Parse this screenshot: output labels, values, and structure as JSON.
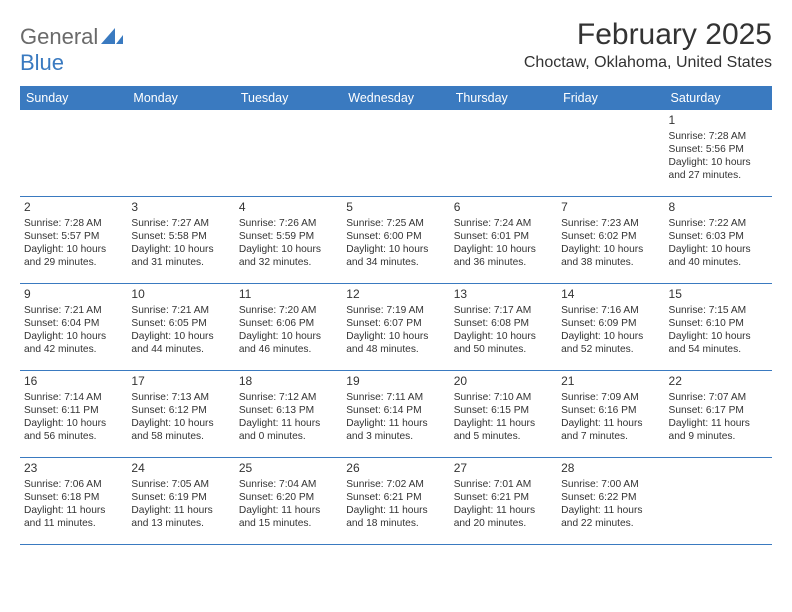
{
  "brand": {
    "text_general": "General",
    "text_blue": "Blue",
    "accent_color": "#3a7ac0",
    "gray_color": "#6a6a6a"
  },
  "title": "February 2025",
  "location": "Choctaw, Oklahoma, United States",
  "colors": {
    "header_bg": "#3a7ac0",
    "header_text": "#ffffff",
    "row_border": "#3a7ac0",
    "text": "#333333",
    "background": "#ffffff"
  },
  "fonts": {
    "title_size_pt": 22,
    "subtitle_size_pt": 12,
    "day_header_size_pt": 9,
    "daynum_size_pt": 9,
    "body_size_pt": 7.5
  },
  "day_headers": [
    "Sunday",
    "Monday",
    "Tuesday",
    "Wednesday",
    "Thursday",
    "Friday",
    "Saturday"
  ],
  "weeks": [
    [
      null,
      null,
      null,
      null,
      null,
      null,
      {
        "n": "1",
        "sunrise": "Sunrise: 7:28 AM",
        "sunset": "Sunset: 5:56 PM",
        "daylight": "Daylight: 10 hours and 27 minutes."
      }
    ],
    [
      {
        "n": "2",
        "sunrise": "Sunrise: 7:28 AM",
        "sunset": "Sunset: 5:57 PM",
        "daylight": "Daylight: 10 hours and 29 minutes."
      },
      {
        "n": "3",
        "sunrise": "Sunrise: 7:27 AM",
        "sunset": "Sunset: 5:58 PM",
        "daylight": "Daylight: 10 hours and 31 minutes."
      },
      {
        "n": "4",
        "sunrise": "Sunrise: 7:26 AM",
        "sunset": "Sunset: 5:59 PM",
        "daylight": "Daylight: 10 hours and 32 minutes."
      },
      {
        "n": "5",
        "sunrise": "Sunrise: 7:25 AM",
        "sunset": "Sunset: 6:00 PM",
        "daylight": "Daylight: 10 hours and 34 minutes."
      },
      {
        "n": "6",
        "sunrise": "Sunrise: 7:24 AM",
        "sunset": "Sunset: 6:01 PM",
        "daylight": "Daylight: 10 hours and 36 minutes."
      },
      {
        "n": "7",
        "sunrise": "Sunrise: 7:23 AM",
        "sunset": "Sunset: 6:02 PM",
        "daylight": "Daylight: 10 hours and 38 minutes."
      },
      {
        "n": "8",
        "sunrise": "Sunrise: 7:22 AM",
        "sunset": "Sunset: 6:03 PM",
        "daylight": "Daylight: 10 hours and 40 minutes."
      }
    ],
    [
      {
        "n": "9",
        "sunrise": "Sunrise: 7:21 AM",
        "sunset": "Sunset: 6:04 PM",
        "daylight": "Daylight: 10 hours and 42 minutes."
      },
      {
        "n": "10",
        "sunrise": "Sunrise: 7:21 AM",
        "sunset": "Sunset: 6:05 PM",
        "daylight": "Daylight: 10 hours and 44 minutes."
      },
      {
        "n": "11",
        "sunrise": "Sunrise: 7:20 AM",
        "sunset": "Sunset: 6:06 PM",
        "daylight": "Daylight: 10 hours and 46 minutes."
      },
      {
        "n": "12",
        "sunrise": "Sunrise: 7:19 AM",
        "sunset": "Sunset: 6:07 PM",
        "daylight": "Daylight: 10 hours and 48 minutes."
      },
      {
        "n": "13",
        "sunrise": "Sunrise: 7:17 AM",
        "sunset": "Sunset: 6:08 PM",
        "daylight": "Daylight: 10 hours and 50 minutes."
      },
      {
        "n": "14",
        "sunrise": "Sunrise: 7:16 AM",
        "sunset": "Sunset: 6:09 PM",
        "daylight": "Daylight: 10 hours and 52 minutes."
      },
      {
        "n": "15",
        "sunrise": "Sunrise: 7:15 AM",
        "sunset": "Sunset: 6:10 PM",
        "daylight": "Daylight: 10 hours and 54 minutes."
      }
    ],
    [
      {
        "n": "16",
        "sunrise": "Sunrise: 7:14 AM",
        "sunset": "Sunset: 6:11 PM",
        "daylight": "Daylight: 10 hours and 56 minutes."
      },
      {
        "n": "17",
        "sunrise": "Sunrise: 7:13 AM",
        "sunset": "Sunset: 6:12 PM",
        "daylight": "Daylight: 10 hours and 58 minutes."
      },
      {
        "n": "18",
        "sunrise": "Sunrise: 7:12 AM",
        "sunset": "Sunset: 6:13 PM",
        "daylight": "Daylight: 11 hours and 0 minutes."
      },
      {
        "n": "19",
        "sunrise": "Sunrise: 7:11 AM",
        "sunset": "Sunset: 6:14 PM",
        "daylight": "Daylight: 11 hours and 3 minutes."
      },
      {
        "n": "20",
        "sunrise": "Sunrise: 7:10 AM",
        "sunset": "Sunset: 6:15 PM",
        "daylight": "Daylight: 11 hours and 5 minutes."
      },
      {
        "n": "21",
        "sunrise": "Sunrise: 7:09 AM",
        "sunset": "Sunset: 6:16 PM",
        "daylight": "Daylight: 11 hours and 7 minutes."
      },
      {
        "n": "22",
        "sunrise": "Sunrise: 7:07 AM",
        "sunset": "Sunset: 6:17 PM",
        "daylight": "Daylight: 11 hours and 9 minutes."
      }
    ],
    [
      {
        "n": "23",
        "sunrise": "Sunrise: 7:06 AM",
        "sunset": "Sunset: 6:18 PM",
        "daylight": "Daylight: 11 hours and 11 minutes."
      },
      {
        "n": "24",
        "sunrise": "Sunrise: 7:05 AM",
        "sunset": "Sunset: 6:19 PM",
        "daylight": "Daylight: 11 hours and 13 minutes."
      },
      {
        "n": "25",
        "sunrise": "Sunrise: 7:04 AM",
        "sunset": "Sunset: 6:20 PM",
        "daylight": "Daylight: 11 hours and 15 minutes."
      },
      {
        "n": "26",
        "sunrise": "Sunrise: 7:02 AM",
        "sunset": "Sunset: 6:21 PM",
        "daylight": "Daylight: 11 hours and 18 minutes."
      },
      {
        "n": "27",
        "sunrise": "Sunrise: 7:01 AM",
        "sunset": "Sunset: 6:21 PM",
        "daylight": "Daylight: 11 hours and 20 minutes."
      },
      {
        "n": "28",
        "sunrise": "Sunrise: 7:00 AM",
        "sunset": "Sunset: 6:22 PM",
        "daylight": "Daylight: 11 hours and 22 minutes."
      },
      null
    ]
  ]
}
